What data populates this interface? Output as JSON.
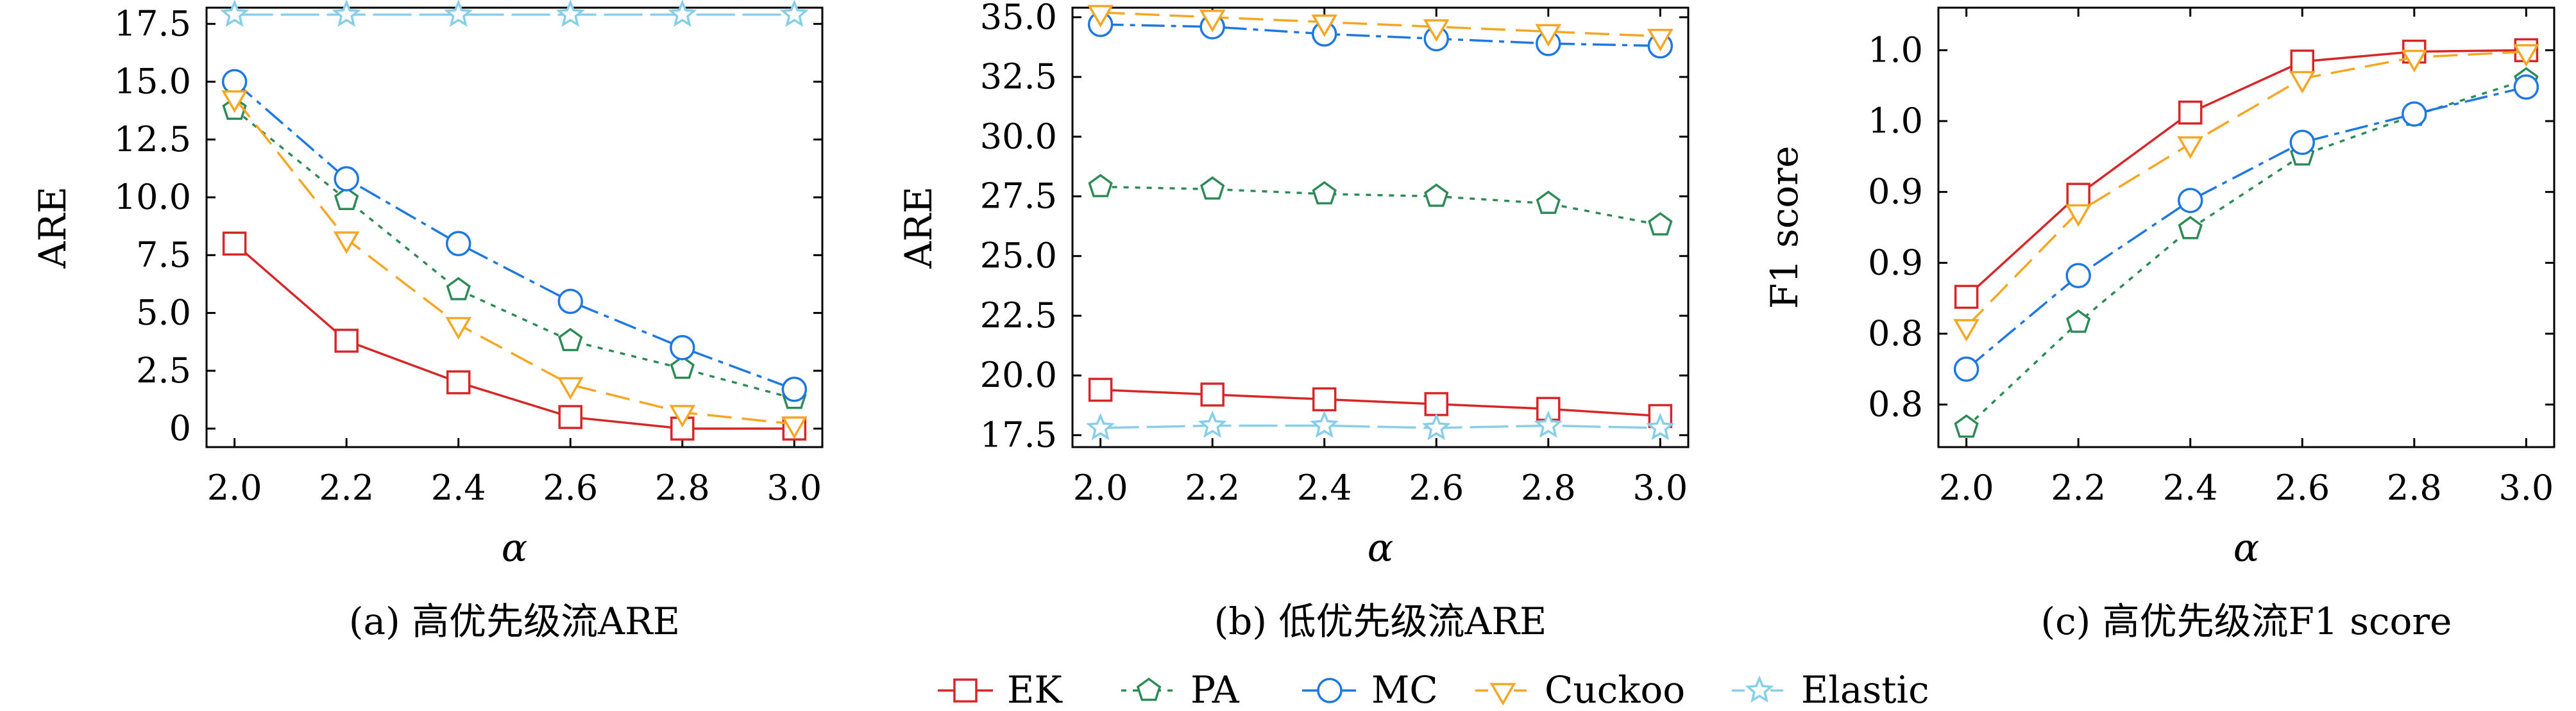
{
  "colors": {
    "EK": "#d62728",
    "PA": "#2e8b57",
    "MC": "#1f77e0",
    "Cuckoo": "#f5a623",
    "Elastic": "#87ceeb"
  },
  "legend": {
    "placement": "bottom-center",
    "entries": [
      "EK",
      "PA",
      "MC",
      "Cuckoo",
      "Elastic"
    ]
  },
  "chart_data": [
    {
      "type": "line",
      "caption": "(a) 高优先级流ARE",
      "xlabel": "α",
      "ylabel": "ARE",
      "x": [
        2.0,
        2.2,
        2.4,
        2.6,
        2.8,
        3.0
      ],
      "x_ticks": [
        "2.0",
        "2.2",
        "2.4",
        "2.6",
        "2.8",
        "3.0"
      ],
      "xlim": [
        1.95,
        3.05
      ],
      "ylim": [
        -0.8,
        18.2
      ],
      "y_ticks": [
        {
          "value": 0,
          "label": "0"
        },
        {
          "value": 2.5,
          "label": "2.5"
        },
        {
          "value": 5.0,
          "label": "5.0"
        },
        {
          "value": 7.5,
          "label": "7.5"
        },
        {
          "value": 10.0,
          "label": "10.0"
        },
        {
          "value": 12.5,
          "label": "12.5"
        },
        {
          "value": 15.0,
          "label": "15.0"
        },
        {
          "value": 17.5,
          "label": "17.5"
        }
      ],
      "series": [
        {
          "name": "EK",
          "values": [
            8.0,
            3.8,
            2.0,
            0.5,
            0.0,
            0.0
          ]
        },
        {
          "name": "PA",
          "values": [
            13.8,
            9.9,
            6.0,
            3.8,
            2.6,
            1.3
          ]
        },
        {
          "name": "MC",
          "values": [
            15.0,
            10.8,
            8.0,
            5.5,
            3.5,
            1.7
          ]
        },
        {
          "name": "Cuckoo",
          "values": [
            14.3,
            8.2,
            4.5,
            1.9,
            0.7,
            0.2
          ]
        },
        {
          "name": "Elastic",
          "values": [
            17.9,
            17.9,
            17.9,
            17.9,
            17.9,
            17.9
          ]
        }
      ]
    },
    {
      "type": "line",
      "caption": "(b) 低优先级流ARE",
      "xlabel": "α",
      "ylabel": "ARE",
      "x": [
        2.0,
        2.2,
        2.4,
        2.6,
        2.8,
        3.0
      ],
      "x_ticks": [
        "2.0",
        "2.2",
        "2.4",
        "2.6",
        "2.8",
        "3.0"
      ],
      "xlim": [
        1.95,
        3.05
      ],
      "ylim": [
        17.0,
        35.4
      ],
      "y_ticks": [
        {
          "value": 17.5,
          "label": "17.5"
        },
        {
          "value": 20.0,
          "label": "20.0"
        },
        {
          "value": 22.5,
          "label": "22.5"
        },
        {
          "value": 25.0,
          "label": "25.0"
        },
        {
          "value": 27.5,
          "label": "27.5"
        },
        {
          "value": 30.0,
          "label": "30.0"
        },
        {
          "value": 32.5,
          "label": "32.5"
        },
        {
          "value": 35.0,
          "label": "35.0"
        }
      ],
      "series": [
        {
          "name": "EK",
          "values": [
            19.4,
            19.2,
            19.0,
            18.8,
            18.6,
            18.3
          ]
        },
        {
          "name": "PA",
          "values": [
            27.9,
            27.8,
            27.6,
            27.5,
            27.2,
            26.3
          ]
        },
        {
          "name": "MC",
          "values": [
            34.7,
            34.6,
            34.3,
            34.1,
            33.9,
            33.8
          ]
        },
        {
          "name": "Cuckoo",
          "values": [
            35.2,
            35.0,
            34.8,
            34.6,
            34.4,
            34.2
          ]
        },
        {
          "name": "Elastic",
          "values": [
            17.8,
            17.9,
            17.9,
            17.8,
            17.9,
            17.8
          ]
        }
      ]
    },
    {
      "type": "line",
      "caption": "(c) 高优先级流F1 score",
      "xlabel": "α",
      "ylabel": "F1 score",
      "x": [
        2.0,
        2.2,
        2.4,
        2.6,
        2.8,
        3.0
      ],
      "x_ticks": [
        "2.0",
        "2.2",
        "2.4",
        "2.6",
        "2.8",
        "3.0"
      ],
      "xlim": [
        1.95,
        3.05
      ],
      "ylim": [
        0.72,
        1.03
      ],
      "y_ticks": [
        {
          "value": 0.75,
          "label": "0.8"
        },
        {
          "value": 0.8,
          "label": "0.8"
        },
        {
          "value": 0.85,
          "label": "0.9"
        },
        {
          "value": 0.9,
          "label": "0.9"
        },
        {
          "value": 0.95,
          "label": "1.0"
        },
        {
          "value": 1.0,
          "label": "1.0"
        }
      ],
      "series": [
        {
          "name": "EK",
          "values": [
            0.826,
            0.898,
            0.956,
            0.992,
            0.999,
            1.0
          ]
        },
        {
          "name": "PA",
          "values": [
            0.734,
            0.808,
            0.874,
            0.926,
            0.954,
            0.979
          ]
        },
        {
          "name": "MC",
          "values": [
            0.775,
            0.841,
            0.894,
            0.935,
            0.955,
            0.974
          ]
        },
        {
          "name": "Cuckoo",
          "values": [
            0.805,
            0.886,
            0.934,
            0.98,
            0.995,
            0.999
          ]
        }
      ]
    }
  ]
}
